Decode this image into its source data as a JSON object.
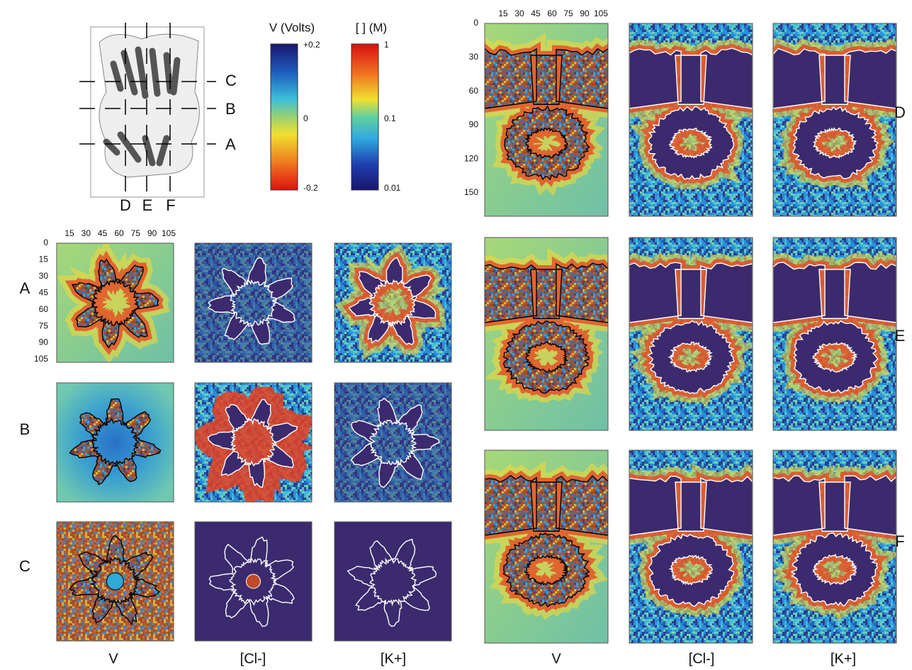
{
  "schematic": {
    "labels": [
      "C",
      "B",
      "A",
      "D",
      "E",
      "F"
    ]
  },
  "colorbars": [
    {
      "title": "V (Volts)",
      "ticks": [
        "+0.2",
        "0",
        "-0.2"
      ]
    },
    {
      "title": "[ ] (M)",
      "ticks": [
        "1",
        "0.1",
        "0.01"
      ]
    }
  ],
  "left": {
    "x_ticks": [
      "15",
      "30",
      "45",
      "60",
      "75",
      "90",
      "105"
    ],
    "y_ticks": [
      "0",
      "15",
      "30",
      "45",
      "60",
      "75",
      "90",
      "105"
    ],
    "rows": [
      "A",
      "B",
      "C"
    ],
    "columns": [
      "V",
      "[Cl-]",
      "[K+]"
    ]
  },
  "right": {
    "x_ticks": [
      "15",
      "30",
      "45",
      "60",
      "75",
      "90",
      "105"
    ],
    "y_ticks": [
      "0",
      "30",
      "60",
      "90",
      "120",
      "150"
    ],
    "rows": [
      "D",
      "E",
      "F"
    ],
    "columns": [
      "V",
      "[Cl-]",
      "[K+]"
    ]
  }
}
